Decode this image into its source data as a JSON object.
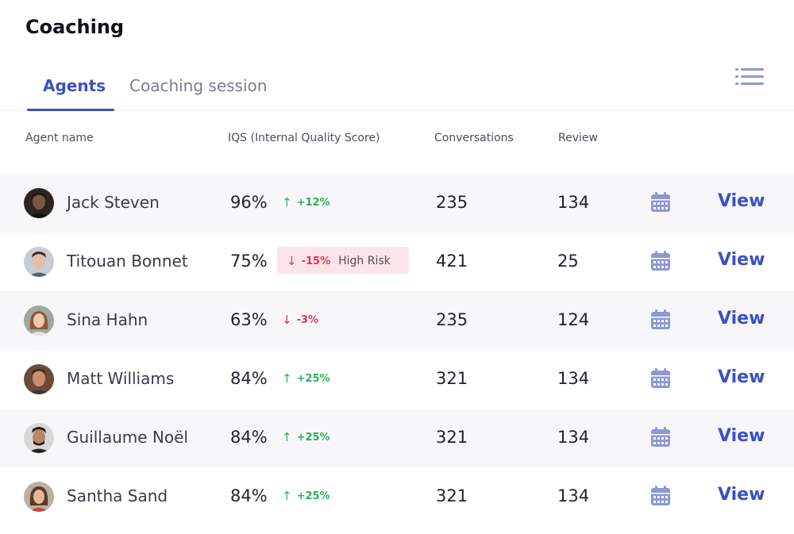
{
  "header": {
    "title": "Coaching"
  },
  "tabs": [
    {
      "label": "Agents",
      "active": true
    },
    {
      "label": "Coaching session",
      "active": false
    }
  ],
  "columns": {
    "agent_name": "Agent name",
    "iqs": "IQS (Internal Quality Score)",
    "conversations": "Conversations",
    "review": "Review"
  },
  "rows": [
    {
      "name": "Jack Steven",
      "iqs": "96%",
      "trend": "+12%",
      "direction": "up",
      "risk": "",
      "conversations": "235",
      "review": "134",
      "action": "View"
    },
    {
      "name": "Titouan Bonnet",
      "iqs": "75%",
      "trend": "-15%",
      "direction": "down",
      "risk": "High Risk",
      "conversations": "421",
      "review": "25",
      "action": "View"
    },
    {
      "name": "Sina Hahn",
      "iqs": "63%",
      "trend": "-3%",
      "direction": "down",
      "risk": "",
      "conversations": "235",
      "review": "124",
      "action": "View"
    },
    {
      "name": "Matt Williams",
      "iqs": "84%",
      "trend": "+25%",
      "direction": "up",
      "risk": "",
      "conversations": "321",
      "review": "134",
      "action": "View"
    },
    {
      "name": "Guillaume Noël",
      "iqs": "84%",
      "trend": "+25%",
      "direction": "up",
      "risk": "",
      "conversations": "321",
      "review": "134",
      "action": "View"
    },
    {
      "name": "Santha Sand",
      "iqs": "84%",
      "trend": "+25%",
      "direction": "up",
      "risk": "",
      "conversations": "321",
      "review": "134",
      "action": "View"
    }
  ],
  "icons": {
    "view_toggle": "list-icon",
    "schedule": "calendar-icon",
    "trend_up": "arrow-up-icon",
    "trend_down": "arrow-down-icon"
  },
  "colors": {
    "accent": "#3d4fc4",
    "positive": "#2fae5e",
    "negative": "#e0374f",
    "risk_bg": "#fde4ea",
    "calendar": "#8d98d2"
  }
}
